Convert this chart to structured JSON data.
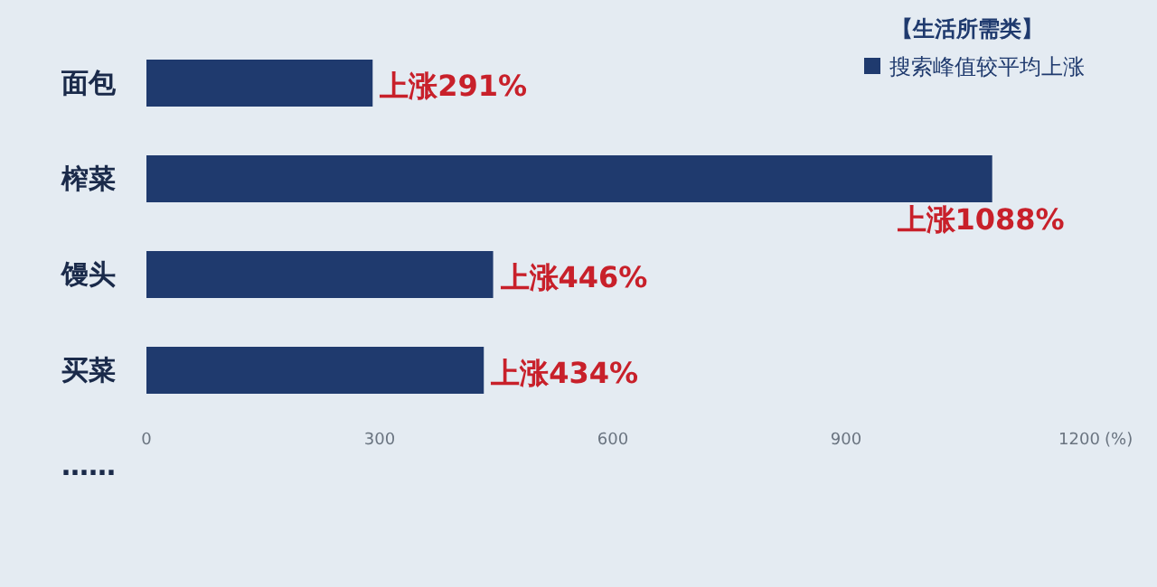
{
  "chart_data": {
    "type": "bar",
    "orientation": "horizontal",
    "title": "【生活所需类】",
    "categories": [
      "面包",
      "榨菜",
      "馒头",
      "买菜",
      "……"
    ],
    "series": [
      {
        "name": "搜索峰值较平均上涨",
        "color": "#1f3a6e",
        "values": [
          291,
          1088,
          446,
          434,
          null
        ],
        "value_labels": [
          "上涨291%",
          "上涨1088%",
          "上涨446%",
          "上涨434%",
          null
        ]
      }
    ],
    "xlim": [
      0,
      1200
    ],
    "xticks": [
      0,
      300,
      600,
      900,
      1200
    ],
    "xlabel": "(%)",
    "legend": "top right"
  }
}
